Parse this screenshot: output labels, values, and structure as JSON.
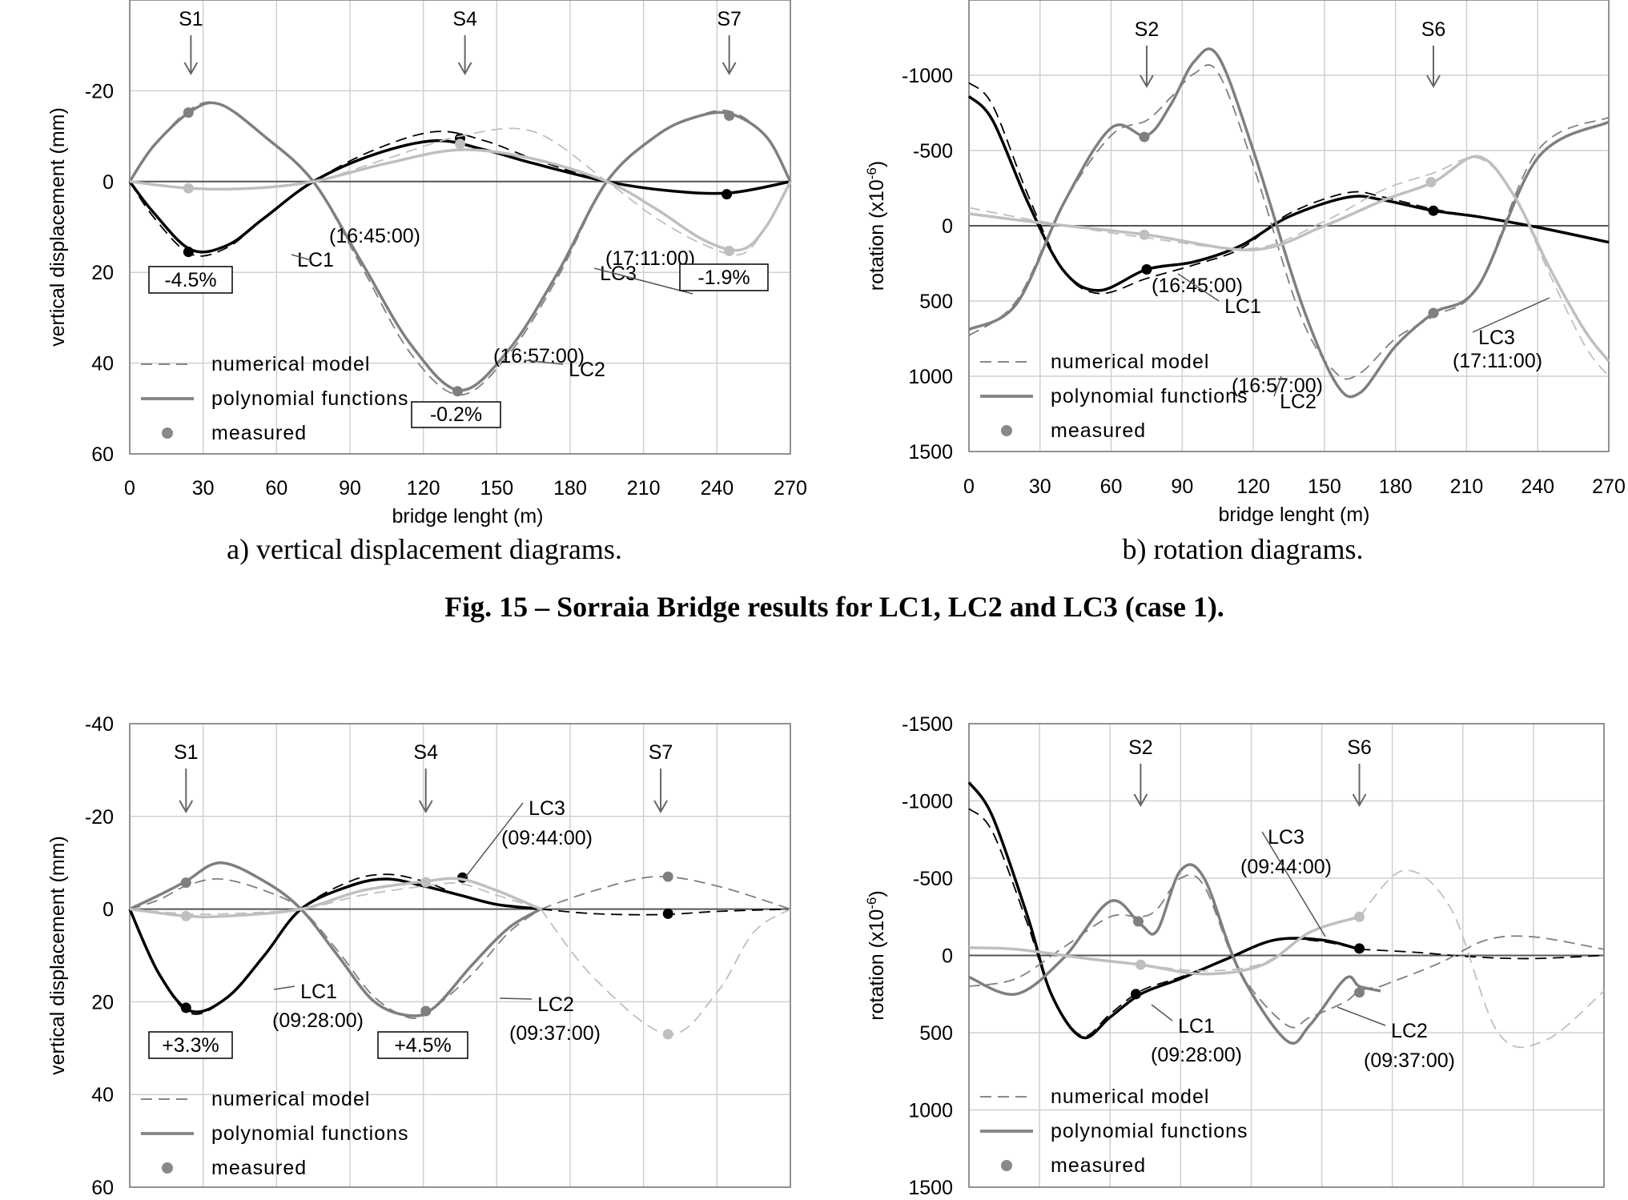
{
  "figure_caption": "Fig. 15 – Sorraia Bridge results for LC1, LC2 and LC3 (case 1).",
  "colors": {
    "LC1": "#000000",
    "LC2": "#7f7f7f",
    "LC3": "#bfbfbf",
    "grid": "#d0d0d0"
  },
  "legend": [
    "numerical model",
    "polynomial functions",
    "measured"
  ],
  "chart_data": [
    {
      "type": "line",
      "caption": "a) vertical displacement diagrams.",
      "xlabel": "bridge lenght (m)",
      "ylabel": "vertical displacement (mm)",
      "xlim": [
        0,
        270
      ],
      "ylim": [
        -40,
        60
      ],
      "y_inverted": true,
      "xticks": [
        0,
        30,
        60,
        90,
        120,
        150,
        180,
        210,
        240,
        270
      ],
      "xtick_labels": [
        "0",
        "30",
        "60",
        "90",
        "120",
        "150",
        "180",
        "210",
        "240",
        "270"
      ],
      "yticks": [
        -20,
        0,
        20,
        40,
        60
      ],
      "ytick_labels": [
        "-20",
        "0",
        "20",
        "40",
        "60"
      ],
      "grid": true,
      "legend_position": "bottom-left",
      "sections": [
        {
          "label": "S1",
          "x": 25
        },
        {
          "label": "S4",
          "x": 137
        },
        {
          "label": "S7",
          "x": 245
        }
      ],
      "series": [
        {
          "name": "LC1",
          "time": "(16:45:00)",
          "color": "#000000",
          "x": [
            0,
            10,
            25,
            40,
            55,
            75,
            100,
            125,
            145,
            165,
            195,
            220,
            245,
            270
          ],
          "poly": [
            0,
            7,
            15,
            14,
            8,
            0,
            -6,
            -9,
            -7,
            -4,
            0,
            2,
            2.5,
            0
          ],
          "model": [
            0,
            8,
            16,
            14.5,
            8,
            0,
            -7,
            -11,
            -9,
            -5,
            0,
            2,
            2.5,
            0
          ],
          "measured": [
            {
              "x": 24,
              "y": 15.5
            },
            {
              "x": 135,
              "y": -9.5
            },
            {
              "x": 244,
              "y": 2.8
            }
          ]
        },
        {
          "name": "LC2",
          "time": "(16:57:00)",
          "color": "#7f7f7f",
          "x": [
            0,
            10,
            25,
            37,
            55,
            75,
            95,
            115,
            135,
            155,
            175,
            195,
            215,
            230,
            245,
            260,
            270
          ],
          "poly": [
            0,
            -8,
            -15.5,
            -17,
            -10,
            0,
            18,
            36,
            46,
            37,
            20,
            0,
            -10,
            -14,
            -15,
            -10,
            0
          ],
          "model": [
            0,
            -8,
            -16,
            -17,
            -10,
            0,
            19,
            38,
            47,
            38,
            21,
            0,
            -10,
            -14,
            -15.5,
            -10,
            0
          ],
          "measured": [
            {
              "x": 24,
              "y": -15.2
            },
            {
              "x": 134,
              "y": 46.2
            },
            {
              "x": 245,
              "y": -14.5
            }
          ]
        },
        {
          "name": "LC3",
          "time": "(17:11:00)",
          "color": "#bfbfbf",
          "x": [
            0,
            25,
            50,
            75,
            105,
            135,
            165,
            195,
            215,
            235,
            250,
            260,
            270
          ],
          "poly": [
            0,
            1.5,
            1.5,
            0,
            -4,
            -7,
            -5,
            0,
            6,
            13,
            15,
            10,
            0
          ],
          "model": [
            0,
            1.5,
            1.5,
            0,
            -5,
            -10,
            -11,
            0,
            8,
            14,
            16,
            10,
            0
          ],
          "measured": [
            {
              "x": 24,
              "y": 1.5
            },
            {
              "x": 135,
              "y": -8.3
            },
            {
              "x": 245,
              "y": 15.3
            }
          ]
        }
      ],
      "annotations": [
        {
          "text": "-4.5%",
          "boxed": true
        },
        {
          "text": "-0.2%",
          "boxed": true
        },
        {
          "text": "-1.9%",
          "boxed": true
        }
      ]
    },
    {
      "type": "line",
      "caption": "b) rotation diagrams.",
      "xlabel": "bridge lenght (m)",
      "ylabel": "rotation (x10",
      "ylabel_sup": "-6",
      "ylabel_end": ")",
      "xlim": [
        0,
        270
      ],
      "ylim": [
        -1500,
        1500
      ],
      "y_inverted": true,
      "xticks": [
        0,
        30,
        60,
        90,
        120,
        150,
        180,
        210,
        240,
        270
      ],
      "xtick_labels": [
        "0",
        "30",
        "60",
        "90",
        "120",
        "150",
        "180",
        "210",
        "240",
        "270"
      ],
      "yticks": [
        -1000,
        -500,
        0,
        500,
        1000,
        1500
      ],
      "ytick_labels": [
        "-1000",
        "-500",
        "0",
        "500",
        "1000",
        "1500"
      ],
      "grid": true,
      "legend_position": "bottom-left",
      "sections": [
        {
          "label": "S2",
          "x": 75
        },
        {
          "label": "S6",
          "x": 196
        }
      ],
      "series": [
        {
          "name": "LC1",
          "time": "(16:45:00)",
          "color": "#000000",
          "x": [
            0,
            10,
            25,
            40,
            55,
            75,
            95,
            115,
            135,
            160,
            175,
            196,
            215,
            240,
            270
          ],
          "poly": [
            -860,
            -700,
            -150,
            300,
            430,
            290,
            240,
            130,
            -60,
            -190,
            -170,
            -100,
            -60,
            10,
            110
          ],
          "model": [
            -950,
            -800,
            -200,
            300,
            450,
            350,
            260,
            150,
            -80,
            -220,
            -190,
            -110,
            -60,
            10,
            110
          ],
          "measured": [
            {
              "x": 75,
              "y": 290
            },
            {
              "x": 196,
              "y": -100
            }
          ]
        },
        {
          "name": "LC2",
          "time": "(16:57:00)",
          "color": "#7f7f7f",
          "x": [
            0,
            20,
            40,
            60,
            75,
            85,
            95,
            105,
            120,
            140,
            155,
            165,
            180,
            196,
            215,
            240,
            270
          ],
          "poly": [
            690,
            520,
            -150,
            -650,
            -600,
            -800,
            -1090,
            -1130,
            -500,
            500,
            1050,
            1110,
            800,
            580,
            400,
            -450,
            -690
          ],
          "model": [
            730,
            500,
            -150,
            -600,
            -700,
            -850,
            -1010,
            -1020,
            -400,
            600,
            980,
            980,
            750,
            600,
            400,
            -500,
            -720
          ],
          "measured": [
            {
              "x": 74,
              "y": -590
            },
            {
              "x": 196,
              "y": 580
            }
          ]
        },
        {
          "name": "LC3",
          "time": "(17:11:00)",
          "color": "#bfbfbf",
          "x": [
            0,
            30,
            75,
            120,
            150,
            175,
            196,
            215,
            230,
            245,
            260,
            270
          ],
          "poly": [
            -80,
            -20,
            60,
            160,
            0,
            -170,
            -290,
            -460,
            -200,
            280,
            700,
            900
          ],
          "model": [
            -120,
            -30,
            80,
            150,
            -30,
            -240,
            -350,
            -450,
            -200,
            320,
            800,
            1000
          ],
          "measured": [
            {
              "x": 74,
              "y": 60
            },
            {
              "x": 195,
              "y": -290
            }
          ]
        }
      ]
    },
    {
      "type": "line",
      "xlabel": "",
      "ylabel": "vertical displacement (mm)",
      "xlim": [
        0,
        270
      ],
      "ylim": [
        -40,
        60
      ],
      "y_inverted": true,
      "xticks": [
        0,
        30,
        60,
        90,
        120,
        150,
        180,
        210,
        240,
        270
      ],
      "yticks": [
        -40,
        -20,
        0,
        20,
        40,
        60
      ],
      "ytick_labels": [
        "-40",
        "-20",
        "0",
        "20",
        "40",
        "60"
      ],
      "grid": true,
      "legend_position": "bottom-left",
      "sections": [
        {
          "label": "S1",
          "x": 23
        },
        {
          "label": "S4",
          "x": 121
        },
        {
          "label": "S7",
          "x": 217
        }
      ],
      "series": [
        {
          "name": "LC1",
          "time": "(09:28:00)",
          "color": "#000000",
          "x": [
            0,
            12,
            25,
            40,
            55,
            70,
            90,
            105,
            120,
            135,
            150,
            168
          ],
          "poly": [
            0,
            14,
            22,
            19,
            10,
            0,
            -5,
            -6.5,
            -5,
            -3,
            -1,
            0
          ],
          "model": [
            0,
            14,
            22.5,
            19,
            10,
            0,
            -6,
            -7.5,
            -6,
            -3,
            -1,
            0
          ],
          "measured": [
            {
              "x": 23,
              "y": 21.3
            },
            {
              "x": 136,
              "y": -6.8
            }
          ]
        },
        {
          "name": "LC1",
          "time": "",
          "color": "#000000",
          "x": [
            168,
            190,
            217,
            240,
            270
          ],
          "model": [
            0,
            1,
            1.2,
            0.5,
            0
          ],
          "measured": [
            {
              "x": 220,
              "y": 1
            }
          ]
        },
        {
          "name": "LC2",
          "time": "(09:37:00)",
          "color": "#7f7f7f",
          "x": [
            0,
            12,
            23,
            37,
            55,
            70,
            85,
            100,
            115,
            125,
            140,
            155,
            168
          ],
          "poly": [
            0,
            -3,
            -6,
            -10,
            -6,
            0,
            10,
            20,
            23,
            21,
            12,
            4,
            0
          ],
          "model": [
            0,
            -2,
            -5,
            -6.5,
            -4,
            0,
            9,
            19,
            23.5,
            21,
            14,
            5,
            0
          ],
          "measured": [
            {
              "x": 23,
              "y": -5.7
            },
            {
              "x": 121,
              "y": 22
            }
          ]
        },
        {
          "name": "LC2",
          "time": "",
          "color": "#7f7f7f",
          "x": [
            168,
            190,
            215,
            240,
            270
          ],
          "model": [
            0,
            -4,
            -7,
            -5,
            0
          ],
          "measured": [
            {
              "x": 220,
              "y": -7
            }
          ]
        },
        {
          "name": "LC3",
          "time": "(09:44:00)",
          "color": "#bfbfbf",
          "x": [
            0,
            23,
            40,
            70,
            95,
            121,
            135,
            150,
            168
          ],
          "poly": [
            0,
            1.5,
            1.5,
            0,
            -4,
            -6,
            -6.5,
            -4,
            0
          ],
          "model": [
            0,
            1,
            1,
            0,
            -3,
            -5,
            -5.5,
            -3,
            0
          ],
          "measured": [
            {
              "x": 23,
              "y": 1.5
            },
            {
              "x": 121,
              "y": -5.8
            }
          ]
        },
        {
          "name": "LC3",
          "time": "",
          "color": "#bfbfbf",
          "x": [
            168,
            190,
            220,
            240,
            255,
            270
          ],
          "model": [
            0,
            15,
            27,
            18,
            5,
            0
          ],
          "measured": [
            {
              "x": 220,
              "y": 27
            }
          ]
        }
      ],
      "annotations": [
        {
          "text": "+3.3%",
          "boxed": true
        },
        {
          "text": "+4.5%",
          "boxed": true
        }
      ]
    },
    {
      "type": "line",
      "xlabel": "",
      "ylabel": "rotation (x10",
      "ylabel_sup": "-6",
      "ylabel_end": ")",
      "xlim": [
        0,
        270
      ],
      "ylim": [
        -1500,
        1500
      ],
      "y_inverted": true,
      "xticks": [
        0,
        30,
        60,
        90,
        120,
        150,
        180,
        210,
        240,
        270
      ],
      "yticks": [
        -1500,
        -1000,
        -500,
        0,
        500,
        1000,
        1500
      ],
      "ytick_labels": [
        "-1500",
        "-1000",
        "-500",
        "0",
        "500",
        "1000",
        "1500"
      ],
      "grid": true,
      "legend_position": "bottom-left",
      "sections": [
        {
          "label": "S2",
          "x": 73
        },
        {
          "label": "S6",
          "x": 166
        }
      ],
      "series": [
        {
          "name": "LC1",
          "time": "(09:28:00)",
          "color": "#000000",
          "x": [
            0,
            10,
            25,
            35,
            48,
            60,
            73,
            90,
            110,
            130,
            150,
            166
          ],
          "poly": [
            -1120,
            -900,
            -250,
            250,
            530,
            400,
            250,
            150,
            20,
            -100,
            -100,
            -40
          ],
          "model": [
            -950,
            -800,
            -200,
            250,
            520,
            380,
            230,
            140,
            20,
            -100,
            -90,
            -40
          ],
          "measured": [
            {
              "x": 71,
              "y": 250
            },
            {
              "x": 166,
              "y": -45
            }
          ]
        },
        {
          "name": "LC1",
          "time": "",
          "color": "#000000",
          "x": [
            166,
            190,
            215,
            240,
            270
          ],
          "model": [
            -40,
            -20,
            10,
            20,
            0
          ]
        },
        {
          "name": "LC2",
          "time": "(09:37:00)",
          "color": "#7f7f7f",
          "x": [
            0,
            20,
            40,
            60,
            73,
            80,
            90,
            100,
            115,
            135,
            145,
            160,
            166,
            175
          ],
          "poly": [
            140,
            250,
            20,
            -350,
            -200,
            -160,
            -550,
            -500,
            100,
            550,
            450,
            150,
            200,
            230
          ],
          "model": [
            200,
            150,
            -50,
            -250,
            -250,
            -300,
            -500,
            -450,
            100,
            450,
            400,
            300,
            230,
            200
          ],
          "measured": [
            {
              "x": 72,
              "y": -220
            },
            {
              "x": 166,
              "y": 240
            }
          ]
        },
        {
          "name": "LC2",
          "time": "",
          "color": "#7f7f7f",
          "x": [
            175,
            200,
            220,
            240,
            270
          ],
          "model": [
            200,
            50,
            -100,
            -120,
            -40
          ]
        },
        {
          "name": "LC3",
          "time": "(09:44:00)",
          "color": "#bfbfbf",
          "x": [
            0,
            20,
            50,
            73,
            100,
            125,
            145,
            166
          ],
          "poly": [
            -50,
            -40,
            20,
            60,
            120,
            60,
            -150,
            -250
          ],
          "model": [
            -50,
            -40,
            20,
            60,
            100,
            50,
            -150,
            -250
          ],
          "measured": [
            {
              "x": 73,
              "y": 60
            },
            {
              "x": 166,
              "y": -250
            }
          ]
        },
        {
          "name": "LC3",
          "time": "",
          "color": "#bfbfbf",
          "x": [
            166,
            185,
            205,
            225,
            245,
            270
          ],
          "model": [
            -250,
            -550,
            -300,
            500,
            550,
            230
          ]
        }
      ]
    }
  ]
}
